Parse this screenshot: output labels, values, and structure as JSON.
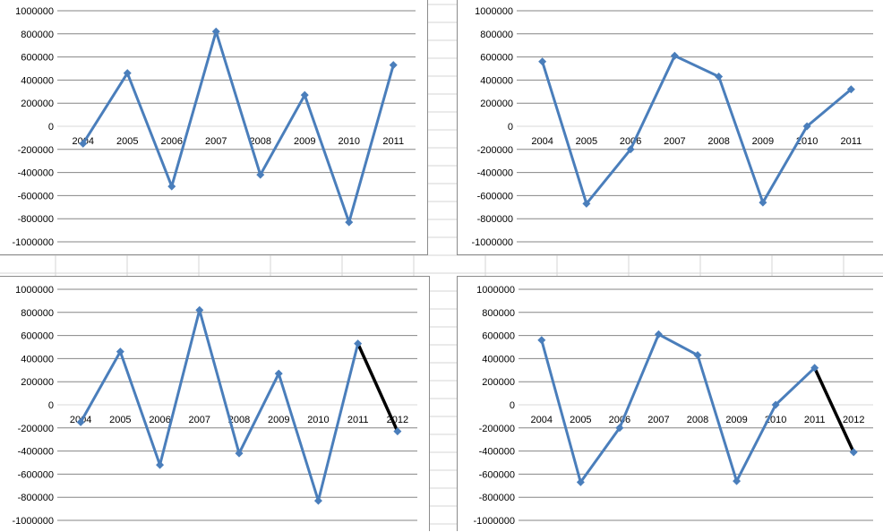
{
  "colors": {
    "series": "#4a7ebb",
    "highlight": "#000000",
    "gridline": "#868686",
    "zero_line": "#d9d9d9",
    "sheet_grid": "#d4d4d4"
  },
  "chart_data": [
    {
      "type": "line",
      "title": "",
      "xlabel": "",
      "ylabel": "",
      "categories": [
        "2004",
        "2005",
        "2006",
        "2007",
        "2008",
        "2009",
        "2010",
        "2011"
      ],
      "series": [
        {
          "values": [
            -150000,
            460000,
            -520000,
            820000,
            -420000,
            270000,
            -830000,
            530000
          ],
          "color": "#4a7ebb"
        }
      ],
      "ylim": [
        -1000000,
        1000000
      ],
      "yticks": [
        "1000000",
        "800000",
        "600000",
        "400000",
        "200000",
        "0",
        "-200000",
        "-400000",
        "-600000",
        "-800000",
        "-1000000"
      ],
      "grid": true,
      "legend": "none"
    },
    {
      "type": "line",
      "title": "",
      "xlabel": "",
      "ylabel": "",
      "categories": [
        "2004",
        "2005",
        "2006",
        "2007",
        "2008",
        "2009",
        "2010",
        "2011"
      ],
      "series": [
        {
          "values": [
            560000,
            -670000,
            -200000,
            610000,
            430000,
            -660000,
            0,
            320000
          ],
          "color": "#4a7ebb"
        }
      ],
      "ylim": [
        -1000000,
        1000000
      ],
      "yticks": [
        "1000000",
        "800000",
        "600000",
        "400000",
        "200000",
        "0",
        "-200000",
        "-400000",
        "-600000",
        "-800000",
        "-1000000"
      ],
      "grid": true,
      "legend": "none"
    },
    {
      "type": "line",
      "title": "",
      "xlabel": "",
      "ylabel": "",
      "categories": [
        "2004",
        "2005",
        "2006",
        "2007",
        "2008",
        "2009",
        "2010",
        "2011",
        "2012"
      ],
      "series": [
        {
          "values": [
            -150000,
            460000,
            -520000,
            820000,
            -420000,
            270000,
            -830000,
            530000,
            -230000
          ],
          "color": "#4a7ebb",
          "highlight_last_segment": "#000000"
        }
      ],
      "ylim": [
        -1000000,
        1000000
      ],
      "yticks": [
        "1000000",
        "800000",
        "600000",
        "400000",
        "200000",
        "0",
        "-200000",
        "-400000",
        "-600000",
        "-800000",
        "-1000000"
      ],
      "grid": true,
      "legend": "none"
    },
    {
      "type": "line",
      "title": "",
      "xlabel": "",
      "ylabel": "",
      "categories": [
        "2004",
        "2005",
        "2006",
        "2007",
        "2008",
        "2009",
        "2010",
        "2011",
        "2012"
      ],
      "series": [
        {
          "values": [
            560000,
            -670000,
            -200000,
            610000,
            430000,
            -660000,
            0,
            320000,
            -410000
          ],
          "color": "#4a7ebb",
          "highlight_last_segment": "#000000"
        }
      ],
      "ylim": [
        -1000000,
        1000000
      ],
      "yticks": [
        "1000000",
        "800000",
        "600000",
        "400000",
        "200000",
        "0",
        "-200000",
        "-400000",
        "-600000",
        "-800000",
        "-1000000"
      ],
      "grid": true,
      "legend": "none"
    }
  ]
}
